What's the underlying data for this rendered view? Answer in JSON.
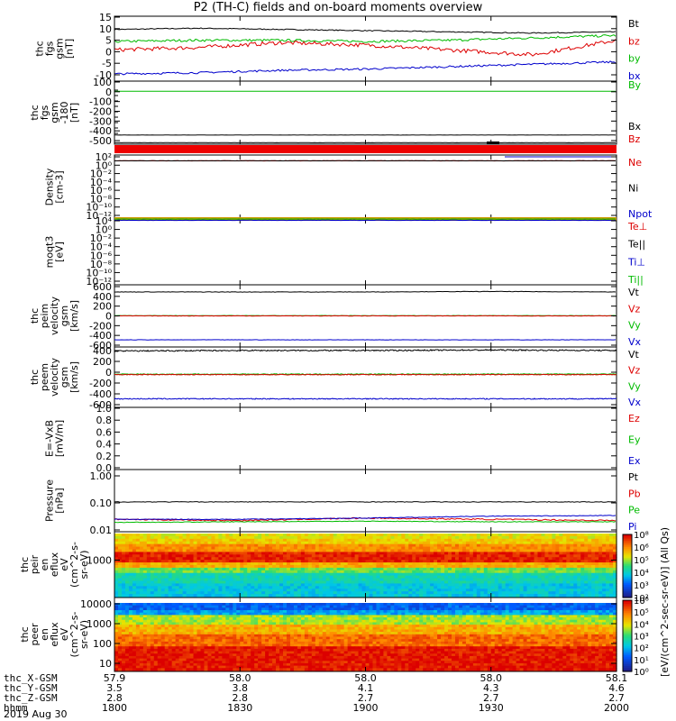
{
  "title": "P2 (TH-C) fields and on-board moments overview",
  "colors": {
    "black": "#000000",
    "red": "#dd0000",
    "green": "#00bb00",
    "blue": "#0000cc"
  },
  "panels": [
    {
      "id": "fgs",
      "ylabel_lines": [
        "thc",
        "fgs",
        "gsm",
        "[nT]"
      ],
      "yticks": [
        "15",
        "10",
        "5",
        "0",
        "-5",
        "-10"
      ],
      "legend": [
        {
          "text": "Bt",
          "color": "#000000"
        },
        {
          "text": "bz",
          "color": "#dd0000"
        },
        {
          "text": "by",
          "color": "#00bb00"
        },
        {
          "text": "bx",
          "color": "#0000cc"
        }
      ]
    },
    {
      "id": "fgs_hi",
      "ylabel_lines": [
        "thc",
        "fgs",
        "gsm",
        "-180",
        "[nT]"
      ],
      "yticks": [
        "100",
        "0",
        "-100",
        "-200",
        "-300",
        "-400",
        "-500"
      ],
      "legend": [
        {
          "text": "By",
          "color": "#00bb00"
        },
        {
          "text": "Bx",
          "color": "#000000"
        },
        {
          "text": "Bz",
          "color": "#dd0000"
        }
      ]
    },
    {
      "id": "density",
      "ylabel_lines": [
        "Density",
        "[cm-3]"
      ],
      "yticks": [
        "10²",
        "10⁰",
        "10⁻²",
        "10⁻⁴",
        "10⁻⁶",
        "10⁻⁸",
        "10⁻¹⁰",
        "10⁻¹²"
      ],
      "legend": [
        {
          "text": "Ne",
          "color": "#dd0000"
        },
        {
          "text": "Ni",
          "color": "#000000"
        },
        {
          "text": "Npot",
          "color": "#0000cc"
        }
      ]
    },
    {
      "id": "temp",
      "ylabel_lines": [
        "moqt3",
        "[eV]"
      ],
      "yticks": [
        "10⁴",
        "10⁰",
        "10⁻²",
        "10⁻⁴",
        "10⁻⁶",
        "10⁻⁸",
        "10⁻¹⁰",
        "10⁻¹²"
      ],
      "legend": [
        {
          "text": "Te⊥",
          "color": "#dd0000"
        },
        {
          "text": "Te||",
          "color": "#000000"
        },
        {
          "text": "Ti⊥",
          "color": "#0000cc"
        },
        {
          "text": "Ti||",
          "color": "#00bb00"
        }
      ]
    },
    {
      "id": "peim",
      "ylabel_lines": [
        "thc",
        "peim",
        "velocity",
        "gsm",
        "[km/s]"
      ],
      "yticks": [
        "600",
        "400",
        "200",
        "0",
        "-200",
        "-400",
        "-600"
      ],
      "legend": [
        {
          "text": "Vt",
          "color": "#000000"
        },
        {
          "text": "Vz",
          "color": "#dd0000"
        },
        {
          "text": "Vy",
          "color": "#00bb00"
        },
        {
          "text": "Vx",
          "color": "#0000cc"
        }
      ]
    },
    {
      "id": "peem",
      "ylabel_lines": [
        "thc",
        "peem",
        "velocity",
        "gsm",
        "[km/s]"
      ],
      "yticks": [
        "400",
        "200",
        "0",
        "-200",
        "-400",
        "-600"
      ],
      "legend": [
        {
          "text": "Vt",
          "color": "#000000"
        },
        {
          "text": "Vz",
          "color": "#dd0000"
        },
        {
          "text": "Vy",
          "color": "#00bb00"
        },
        {
          "text": "Vx",
          "color": "#0000cc"
        }
      ]
    },
    {
      "id": "efield",
      "ylabel_lines": [
        "E=-VxB",
        "[mV/m]"
      ],
      "yticks": [
        "1.0",
        "0.8",
        "0.6",
        "0.4",
        "0.2",
        "0.0"
      ],
      "legend": [
        {
          "text": "Ez",
          "color": "#dd0000"
        },
        {
          "text": "Ey",
          "color": "#00bb00"
        },
        {
          "text": "Ex",
          "color": "#0000cc"
        }
      ]
    },
    {
      "id": "pressure",
      "ylabel_lines": [
        "Pressure",
        "[nPa]"
      ],
      "yticks": [
        "1.00",
        "0.10",
        "0.01"
      ],
      "legend": [
        {
          "text": "Pt",
          "color": "#000000"
        },
        {
          "text": "Pb",
          "color": "#dd0000"
        },
        {
          "text": "Pe",
          "color": "#00bb00"
        },
        {
          "text": "Pi",
          "color": "#0000cc"
        }
      ]
    },
    {
      "id": "peir",
      "ylabel_lines": [
        "thc",
        "peir",
        "en",
        "eflux",
        "eV",
        "(cm^2-s-",
        "sr-eV)"
      ],
      "yticks": [
        "1000"
      ]
    },
    {
      "id": "peer",
      "ylabel_lines": [
        "thc",
        "peer",
        "en",
        "eflux",
        "eV",
        "(cm^2-s-",
        "sr-eV)"
      ],
      "yticks": [
        "10000",
        "1000",
        "100",
        "10"
      ]
    }
  ],
  "colorbar": {
    "label": "[eV/(cm^2-sec-sr-eV)] (All Qs)",
    "ticks": [
      "10⁸",
      "10⁶",
      "10⁵",
      "10⁴",
      "10³",
      "10²"
    ],
    "ticks2": [
      "10⁶",
      "10⁵",
      "10⁴",
      "10³",
      "10²",
      "10¹",
      "10⁰"
    ]
  },
  "xaxis": {
    "ticks": [
      "1800",
      "1830",
      "1900",
      "1930",
      "2000"
    ],
    "rows": [
      {
        "label": "thc_X-GSM",
        "values": [
          "57.9",
          "58.0",
          "58.0",
          "58.0",
          "58.1"
        ]
      },
      {
        "label": "thc_Y-GSM",
        "values": [
          "3.5",
          "3.8",
          "4.1",
          "4.3",
          "4.6"
        ]
      },
      {
        "label": "thc_Z-GSM",
        "values": [
          "2.8",
          "2.8",
          "2.7",
          "2.7",
          "2.7"
        ]
      },
      {
        "label": "hhmm",
        "values": [
          "1800",
          "1830",
          "1900",
          "1930",
          "2000"
        ]
      }
    ],
    "date": "2019 Aug 30"
  },
  "chart_data": {
    "type": "line",
    "title": "P2 (TH-C) fields and on-board moments overview",
    "x": [
      "1800",
      "1830",
      "1900",
      "1930",
      "2000"
    ],
    "xlabel": "hhmm",
    "panels": [
      {
        "ylabel": "thc fgs gsm [nT]",
        "ylim": [
          -12,
          15
        ],
        "series": [
          {
            "name": "Bt",
            "values": [
              10,
              10,
              9,
              8,
              8.5
            ]
          },
          {
            "name": "bz",
            "values": [
              1,
              3,
              3,
              0,
              5
            ]
          },
          {
            "name": "by",
            "values": [
              5,
              5,
              6,
              5,
              7
            ]
          },
          {
            "name": "bx",
            "values": [
              -9,
              -8,
              -7,
              -6,
              -4
            ]
          }
        ]
      },
      {
        "ylabel": "thc fgs gsm -180 [nT]",
        "ylim": [
          -520,
          100
        ],
        "series": [
          {
            "name": "By",
            "values": [
              0,
              0,
              0,
              0,
              0
            ]
          },
          {
            "name": "Bx",
            "values": [
              -430,
              -430,
              -430,
              -430,
              -430
            ]
          },
          {
            "name": "Bz",
            "values": [
              -505,
              -505,
              -505,
              -505,
              -505
            ]
          }
        ]
      },
      {
        "ylabel": "Density [cm-3]",
        "ylim": [
          "1e-13",
          "1e3"
        ],
        "yscale": "log",
        "series": [
          {
            "name": "Ne",
            "values": [
              10,
              10,
              10,
              10,
              10
            ]
          },
          {
            "name": "Ni",
            "values": [
              10,
              10,
              10,
              10,
              10
            ]
          },
          {
            "name": "Npot",
            "values": [
              10,
              10,
              10,
              10,
              10
            ]
          }
        ]
      },
      {
        "ylabel": "moqt3 [eV]",
        "ylim": [
          "1e-13",
          "1e4"
        ],
        "yscale": "log",
        "series": [
          {
            "name": "Te⊥",
            "values": [
              1000,
              1000,
              1000,
              1000,
              1000
            ]
          },
          {
            "name": "Te||",
            "values": [
              1000,
              1000,
              1000,
              1000,
              1000
            ]
          },
          {
            "name": "Ti⊥",
            "values": [
              500,
              500,
              500,
              500,
              500
            ]
          },
          {
            "name": "Ti||",
            "values": [
              500,
              500,
              500,
              500,
              500
            ]
          }
        ]
      },
      {
        "ylabel": "thc peim velocity gsm [km/s]",
        "ylim": [
          -650,
          650
        ],
        "series": [
          {
            "name": "Vt",
            "values": [
              500,
              500,
              500,
              500,
              500
            ]
          },
          {
            "name": "Vz",
            "values": [
              0,
              0,
              0,
              0,
              0
            ]
          },
          {
            "name": "Vy",
            "values": [
              0,
              0,
              0,
              0,
              0
            ]
          },
          {
            "name": "Vx",
            "values": [
              -500,
              -500,
              -500,
              -500,
              -500
            ]
          }
        ]
      },
      {
        "ylabel": "thc peem velocity gsm [km/s]",
        "ylim": [
          -650,
          550
        ],
        "series": [
          {
            "name": "Vt",
            "values": [
              480,
              480,
              480,
              480,
              480
            ]
          },
          {
            "name": "Vz",
            "values": [
              0,
              0,
              0,
              0,
              0
            ]
          },
          {
            "name": "Vy",
            "values": [
              0,
              0,
              0,
              0,
              0
            ]
          },
          {
            "name": "Vx",
            "values": [
              -480,
              -480,
              -480,
              -480,
              -480
            ]
          }
        ]
      },
      {
        "ylabel": "E=-VxB [mV/m]",
        "ylim": [
          0,
          1
        ],
        "series": []
      },
      {
        "ylabel": "Pressure [nPa]",
        "ylim": [
          0.01,
          2
        ],
        "yscale": "log",
        "series": [
          {
            "name": "Pt",
            "values": [
              0.1,
              0.1,
              0.1,
              0.1,
              0.1
            ]
          },
          {
            "name": "Pb",
            "values": [
              0.035,
              0.038,
              0.035,
              0.03,
              0.03
            ]
          },
          {
            "name": "Pe",
            "values": [
              0.03,
              0.03,
              0.03,
              0.03,
              0.03
            ]
          },
          {
            "name": "Pi",
            "values": [
              0.035,
              0.035,
              0.04,
              0.045,
              0.045
            ]
          }
        ]
      }
    ],
    "spectrograms": [
      {
        "ylabel": "thc peir en eflux eV (cm^2-s-sr-eV)",
        "type": "heatmap"
      },
      {
        "ylabel": "thc peer en eflux eV (cm^2-s-sr-eV)",
        "type": "heatmap"
      }
    ]
  }
}
